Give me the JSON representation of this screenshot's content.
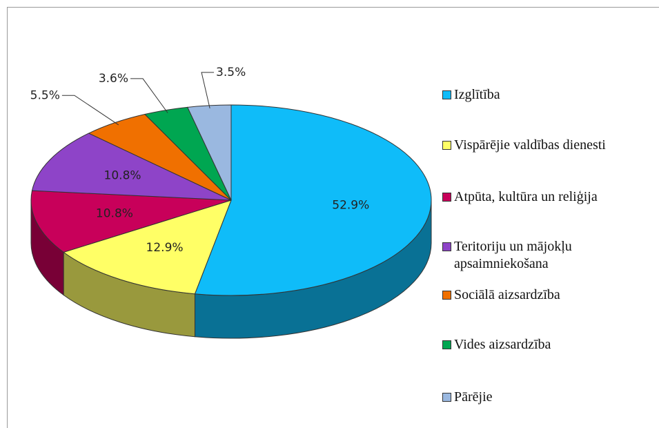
{
  "chart_data": {
    "type": "pie3d",
    "categories": [
      "Izglītība",
      "Vispārējie valdības dienesti",
      "Atpūta, kultūra un reliģija",
      "Teritoriju un mājokļu apsaimniekošana",
      "Sociālā aizsardzība",
      "Vides aizsardzība",
      "Pārējie"
    ],
    "values": [
      52.9,
      12.9,
      10.8,
      10.8,
      5.5,
      3.6,
      3.5
    ],
    "value_labels": [
      "52.9%",
      "12.9%",
      "10.8%",
      "10.8%",
      "5.5%",
      "3.6%",
      "3.5%"
    ],
    "colors": [
      "#0fbcf9",
      "#ffff66",
      "#c8005a",
      "#8e44c8",
      "#f07000",
      "#00a651",
      "#9ab8e0"
    ],
    "legend": "right"
  }
}
